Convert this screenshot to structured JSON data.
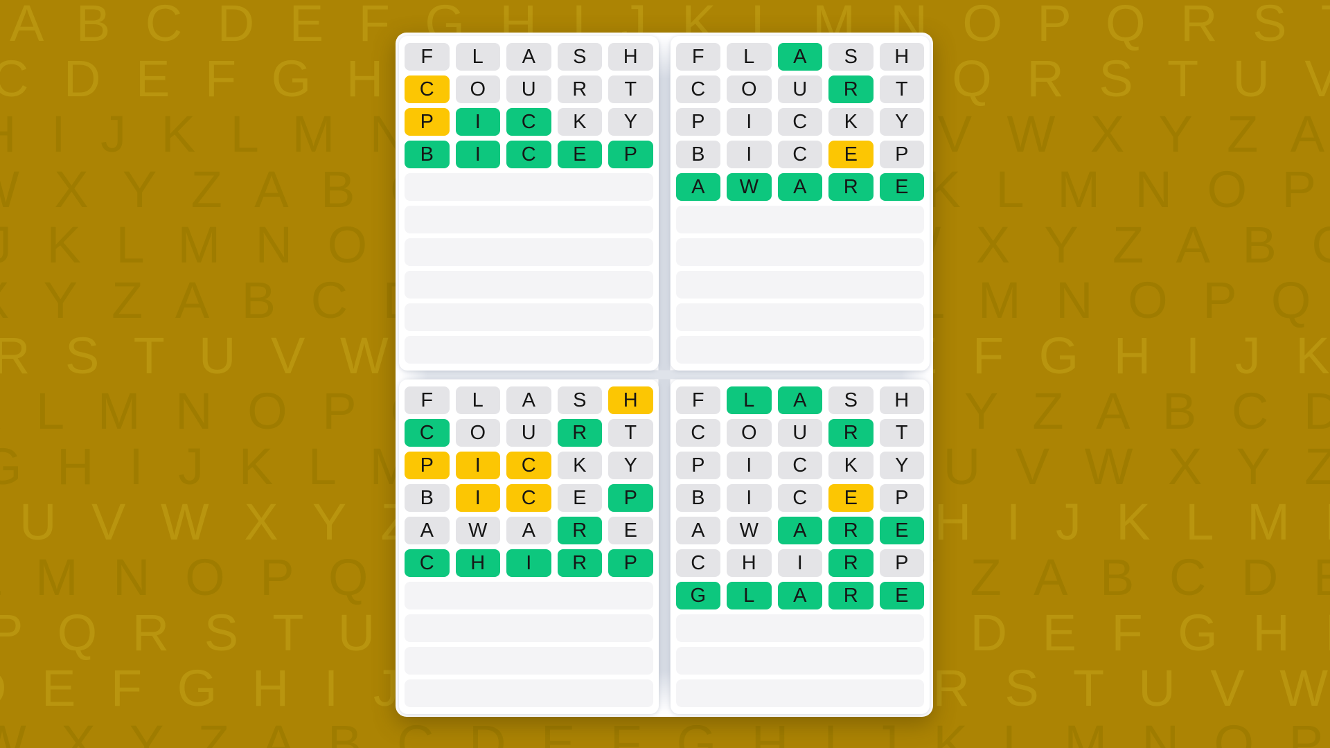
{
  "colors": {
    "background": "#ac8404",
    "pattern_light": "#b9950f",
    "pattern_dark": "#9f7c00",
    "tile_correct": "#0dc77e",
    "tile_present": "#fcc603",
    "tile_absent": "#e4e4e7",
    "empty_row": "#f4f4f6",
    "card": "#ffffff",
    "container": "#fdfdfe"
  },
  "legend": {
    "c": "correct-green",
    "p": "present-yellow",
    "a": "absent-gray"
  },
  "background": {
    "rows": [
      {
        "offset": 14,
        "tone": "light",
        "letters": "A B C D E F G H I J K L M N O P Q R S T U V W X Y Z A B C D E F"
      },
      {
        "offset": -12,
        "tone": "light",
        "letters": "C D E F G H I J K L M N O P Q R S T U V W X Y Z A B C D E F G H"
      },
      {
        "offset": -30,
        "tone": "dark",
        "letters": "H I J K L M N O P Q R S T U V W X Y Z A B C D E F G H I J K L M"
      },
      {
        "offset": -42,
        "tone": "dark",
        "letters": "W X Y Z A B C D E F G H I J K L M N O P Q R S T U V W X Y Z A B"
      },
      {
        "offset": -20,
        "tone": "dark",
        "letters": "J K L M N O P Q R S T U V W X Y Z A B C D E F G H I J K L M N O"
      },
      {
        "offset": -36,
        "tone": "dark",
        "letters": "X Y Z A B C D E F G H I J K L M N O P Q R S T U V W X Y Z A B C"
      },
      {
        "offset": -10,
        "tone": "light",
        "letters": "R S T U V W X Y Z A B C D E F G H I J K L M N O P Q R S T U V W"
      },
      {
        "offset": -48,
        "tone": "dark",
        "letters": "K L M N O P Q R S T U V W X Y Z A B C D E F G H I J K L M N O P"
      },
      {
        "offset": -26,
        "tone": "dark",
        "letters": "G H I J K L M N O P Q R S T U V W X Y Z A B C D E F G H I J K L"
      },
      {
        "offset": 28,
        "tone": "light",
        "letters": "U V W X Y Z A B C D E F G H I J K L M N O P Q R S T U V W X Y Z"
      },
      {
        "offset": -38,
        "tone": "dark",
        "letters": "L M N O P Q R S T U V W X Y Z A B C D E F G H I J K L M N O P Q"
      },
      {
        "offset": -16,
        "tone": "light",
        "letters": "P Q R S T U V W X Y Z A B C D E F G H I J K L M N O P Q R S T U"
      },
      {
        "offset": -44,
        "tone": "light",
        "letters": "D E F G H I J K L M N O P Q R S T U V W X Y Z A B C D E F G H I"
      },
      {
        "offset": -32,
        "tone": "dark",
        "letters": "W X Y Z A B C D E F G H I J K L M N O P Q R S T U V W X Y Z A B"
      }
    ]
  },
  "boards": [
    {
      "id": "top-left",
      "total_rows": 10,
      "guesses": [
        {
          "word": "FLASH",
          "states": "aaaaa"
        },
        {
          "word": "COURT",
          "states": "paaaa"
        },
        {
          "word": "PICKY",
          "states": "pccaa"
        },
        {
          "word": "BICEP",
          "states": "ccccc"
        }
      ]
    },
    {
      "id": "top-right",
      "total_rows": 10,
      "guesses": [
        {
          "word": "FLASH",
          "states": "aacaa"
        },
        {
          "word": "COURT",
          "states": "aaaca"
        },
        {
          "word": "PICKY",
          "states": "aaaaa"
        },
        {
          "word": "BICEP",
          "states": "aaapa"
        },
        {
          "word": "AWARE",
          "states": "ccccc"
        }
      ]
    },
    {
      "id": "bottom-left",
      "total_rows": 10,
      "guesses": [
        {
          "word": "FLASH",
          "states": "aaaap"
        },
        {
          "word": "COURT",
          "states": "caaca"
        },
        {
          "word": "PICKY",
          "states": "pppaa"
        },
        {
          "word": "BICEP",
          "states": "appac"
        },
        {
          "word": "AWARE",
          "states": "aaaca"
        },
        {
          "word": "CHIRP",
          "states": "ccccc"
        }
      ]
    },
    {
      "id": "bottom-right",
      "total_rows": 10,
      "guesses": [
        {
          "word": "FLASH",
          "states": "accaa"
        },
        {
          "word": "COURT",
          "states": "aaaca"
        },
        {
          "word": "PICKY",
          "states": "aaaaa"
        },
        {
          "word": "BICEP",
          "states": "aaapa"
        },
        {
          "word": "AWARE",
          "states": "aaccc"
        },
        {
          "word": "CHIRP",
          "states": "aaaca"
        },
        {
          "word": "GLARE",
          "states": "ccccc"
        }
      ]
    }
  ]
}
